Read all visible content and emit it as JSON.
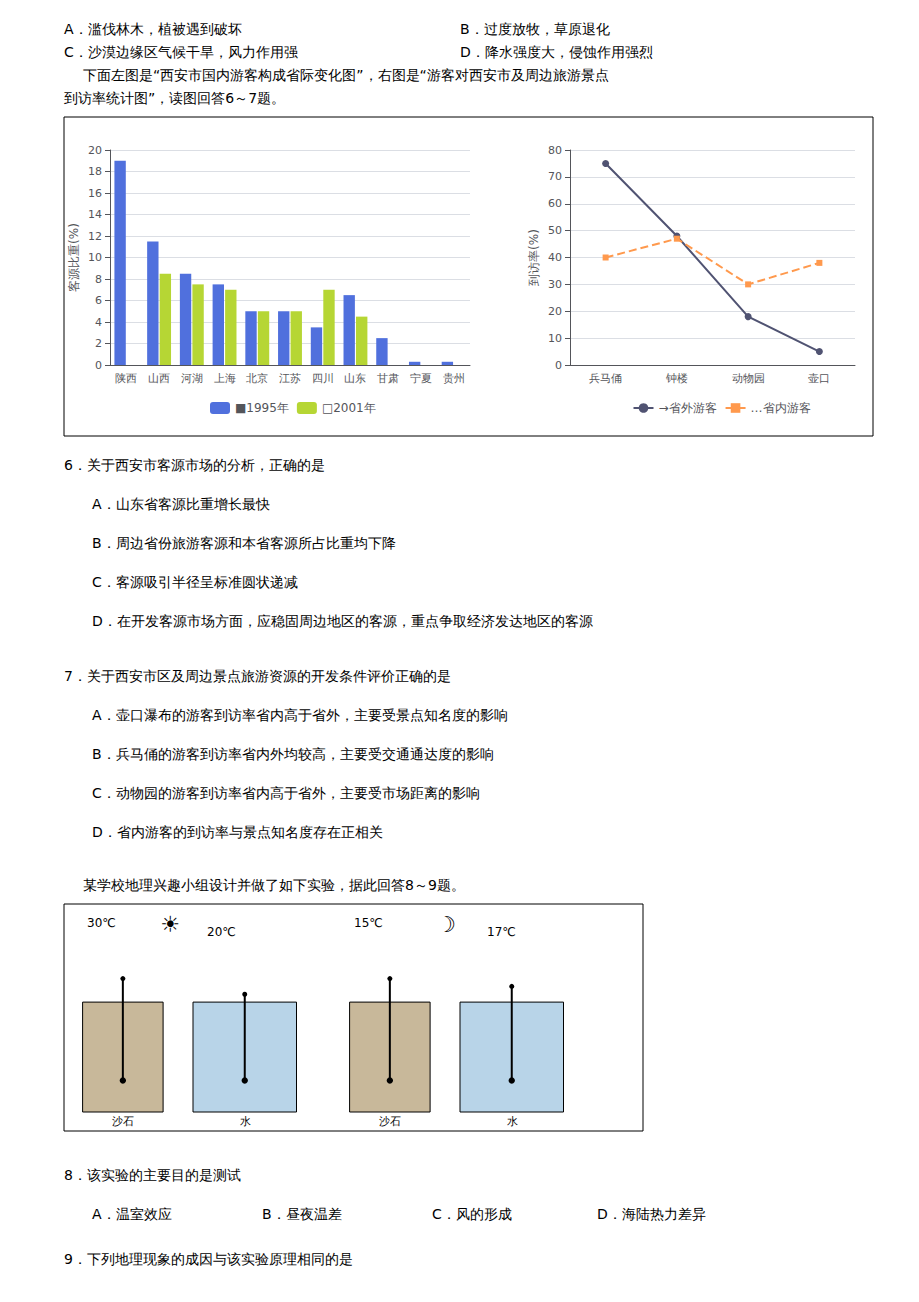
{
  "chart_data": [
    {
      "type": "bar",
      "categories": [
        "陕西",
        "山西",
        "河湖",
        "上海",
        "北京",
        "江苏",
        "四川",
        "山东",
        "甘肃",
        "宁夏",
        "贵州"
      ],
      "series": [
        {
          "name": "■1995年",
          "values": [
            19,
            11.5,
            8.5,
            7.5,
            5,
            5,
            3.5,
            6.5,
            2.5,
            0.3,
            0.3
          ]
        },
        {
          "name": "□2001年",
          "values": [
            0,
            8.5,
            7.5,
            7,
            5,
            5,
            7,
            4.5,
            0,
            0,
            0
          ]
        }
      ],
      "ylabel": "客源比重(%)",
      "ylim": [
        0,
        20
      ],
      "yticks": [
        0,
        2,
        4,
        6,
        8,
        10,
        12,
        14,
        16,
        18,
        20
      ],
      "grid": true,
      "legend": "bottom",
      "annotations": [
        "A．滥伐林木，植被遇到破坏",
        "B．过度放牧，草原退化",
        "C．沙漠边缘区气候干旱，风力作用强",
        "D．降水强度大，侵蚀作用强烈",
        "下面左图是“西安市国内游客构成省际变化图”，右图是“游客对西安市及周边旅游景点",
        "到访率统计图”，读图回答6～7题。",
        "6．关于西安市客源市场的分析，正确的是",
        "A．山东省客源比重增长最快",
        "B．周边省份旅游客源和本省客源所占比重均下降",
        "C．客源吸引半径呈标准圆状递减",
        "D．在开发客源市场方面，应稳固周边地区的客源，重点争取经济发达地区的客源",
        "7．关于西安市区及周边景点旅游资源的开发条件评价正确的是",
        "A．壶口瀑布的游客到访率省内高于省外，主要受景点知名度的影响",
        "B．兵马俑的游客到访率省内外均较高，主要受交通通达度的影响",
        "C．动物园的游客到访率省内高于省外，主要受市场距离的影响",
        "D．省内游客的到访率与景点知名度存在正相关",
        "某学校地理兴趣小组设计并做了如下实验，据此回答8～9题。",
        "☀",
        "30℃",
        "20℃",
        "沙石",
        "水",
        "☽",
        "15℃",
        "17℃",
        "沙石",
        "水",
        "8．该实验的主要目的是测试",
        "A．温室效应",
        "B．昼夜温差",
        "C．风的形成",
        "D．海陆热力差异",
        "9．下列地理现象的成因与该实验原理相同的是"
      ]
    },
    {
      "type": "line",
      "categories": [
        "兵马俑",
        "钟楼",
        "动物园",
        "壶口"
      ],
      "series": [
        {
          "name": "→省外游客",
          "values": [
            75,
            48,
            18,
            5
          ],
          "marker": "circle",
          "line_style": "solid"
        },
        {
          "name": "…省内游客",
          "values": [
            40,
            47,
            30,
            38
          ],
          "marker": "square",
          "line_style": "dashed"
        }
      ],
      "ylabel": "到访率(%)",
      "ylim": [
        0,
        80
      ],
      "yticks": [
        0,
        10,
        20,
        30,
        40,
        50,
        60,
        70,
        80
      ],
      "grid": true,
      "legend": "bottom"
    }
  ]
}
